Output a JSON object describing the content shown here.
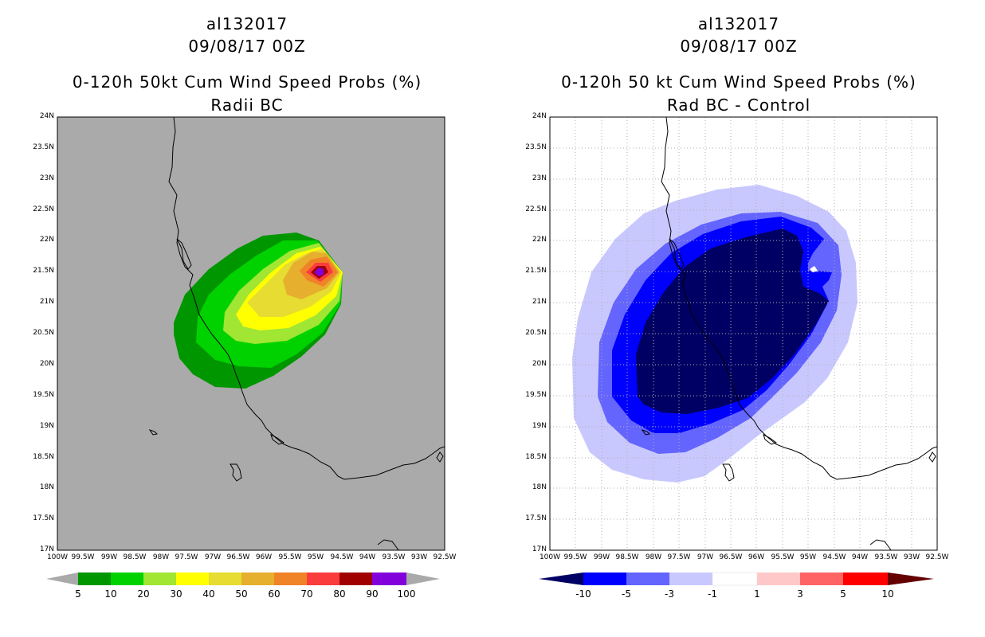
{
  "left_panel": {
    "title_line1": "al132017",
    "title_line2": "09/08/17 00Z",
    "title_line3": "0-120h 50kt Cum Wind Speed Probs (%)",
    "title_line4": "Radii BC",
    "background_color": "#aaaaaa",
    "colorbar": {
      "labels": [
        "5",
        "10",
        "20",
        "30",
        "40",
        "50",
        "60",
        "70",
        "80",
        "90",
        "100"
      ],
      "colors": [
        "#009600",
        "#00d200",
        "#a0e632",
        "#ffff00",
        "#e6dc32",
        "#e6af2d",
        "#f08228",
        "#fa3c3c",
        "#a00000",
        "#8200dc"
      ]
    }
  },
  "right_panel": {
    "title_line1": "al132017",
    "title_line2": "09/08/17 00Z",
    "title_line3": "0-120h 50 kt Cum Wind Speed Probs (%)",
    "title_line4": "Rad BC - Control",
    "background_color": "#ffffff",
    "colorbar": {
      "labels": [
        "-10",
        "-5",
        "-3",
        "-1",
        "1",
        "3",
        "5",
        "10"
      ],
      "colors": [
        "#000064",
        "#0000ff",
        "#6464ff",
        "#c8c8ff",
        "#ffffff",
        "#ffc8c8",
        "#ff6464",
        "#ff0000",
        "#640000"
      ]
    }
  },
  "axes": {
    "lat_labels": [
      "24N",
      "23.5N",
      "23N",
      "22.5N",
      "22N",
      "21.5N",
      "21N",
      "20.5N",
      "20N",
      "19.5N",
      "19N",
      "18.5N",
      "18N",
      "17.5N",
      "17N"
    ],
    "lon_labels": [
      "100W",
      "99.5W",
      "99W",
      "98.5W",
      "98W",
      "97.5W",
      "97W",
      "96.5W",
      "96W",
      "95.5W",
      "95W",
      "94.5W",
      "94W",
      "93.5W",
      "93W",
      "92.5W"
    ]
  }
}
